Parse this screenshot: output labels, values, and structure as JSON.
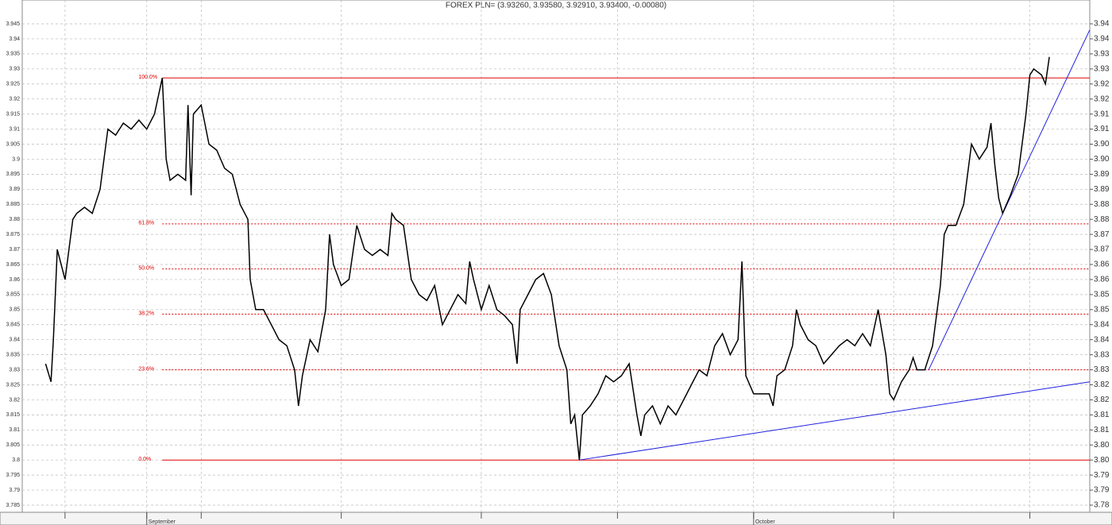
{
  "chart_data": {
    "type": "line",
    "title": "FOREX PLN= (3.93260, 3.93580, 3.92910, 3.93400, -0.00080)",
    "x": [
      30,
      37,
      40,
      45,
      50,
      55,
      60,
      65,
      70,
      80,
      90,
      100,
      110,
      120,
      130,
      140,
      150,
      160,
      170,
      180,
      185,
      190,
      200,
      210,
      213,
      217,
      220,
      230,
      240,
      250,
      260,
      270,
      280,
      290,
      293,
      300,
      310,
      320,
      330,
      340,
      350,
      355,
      360,
      370,
      380,
      390,
      395,
      400,
      410,
      420,
      430,
      440,
      450,
      460,
      470,
      475,
      480,
      490,
      500,
      510,
      520,
      530,
      540,
      550,
      560,
      570,
      575,
      580,
      590,
      600,
      610,
      620,
      630,
      636,
      640,
      650,
      660,
      670,
      680,
      690,
      700,
      705,
      710,
      716,
      720,
      730,
      740,
      750,
      760,
      770,
      780,
      790,
      795,
      800,
      810,
      820,
      830,
      840,
      850,
      860,
      870,
      880,
      890,
      900,
      910,
      920,
      925,
      930,
      940,
      950,
      960,
      965,
      970,
      980,
      990,
      995,
      1000,
      1010,
      1020,
      1030,
      1040,
      1050,
      1060,
      1070,
      1080,
      1090,
      1100,
      1110,
      1115,
      1120,
      1130,
      1140,
      1145,
      1150,
      1160,
      1170,
      1180,
      1185,
      1190,
      1200,
      1210,
      1220,
      1230,
      1240,
      1245,
      1250,
      1255,
      1260,
      1270,
      1280,
      1290,
      1295,
      1300,
      1310,
      1315,
      1320
    ],
    "series": [
      {
        "name": "PLN=",
        "color": "#000000",
        "values": [
          3.832,
          3.826,
          3.84,
          3.87,
          3.865,
          3.86,
          3.87,
          3.88,
          3.882,
          3.884,
          3.882,
          3.89,
          3.91,
          3.908,
          3.912,
          3.91,
          3.913,
          3.91,
          3.915,
          3.927,
          3.9,
          3.893,
          3.895,
          3.893,
          3.918,
          3.888,
          3.915,
          3.918,
          3.905,
          3.903,
          3.897,
          3.895,
          3.885,
          3.88,
          3.86,
          3.85,
          3.85,
          3.845,
          3.84,
          3.838,
          3.83,
          3.818,
          3.828,
          3.84,
          3.836,
          3.85,
          3.875,
          3.865,
          3.858,
          3.86,
          3.878,
          3.87,
          3.868,
          3.87,
          3.868,
          3.882,
          3.88,
          3.878,
          3.86,
          3.855,
          3.853,
          3.858,
          3.845,
          3.85,
          3.855,
          3.852,
          3.866,
          3.86,
          3.85,
          3.858,
          3.85,
          3.848,
          3.845,
          3.832,
          3.85,
          3.855,
          3.86,
          3.862,
          3.855,
          3.838,
          3.83,
          3.812,
          3.815,
          3.8,
          3.815,
          3.818,
          3.822,
          3.828,
          3.826,
          3.828,
          3.832,
          3.815,
          3.808,
          3.815,
          3.818,
          3.812,
          3.818,
          3.815,
          3.82,
          3.825,
          3.83,
          3.828,
          3.838,
          3.842,
          3.835,
          3.84,
          3.866,
          3.828,
          3.822,
          3.822,
          3.822,
          3.818,
          3.828,
          3.83,
          3.838,
          3.85,
          3.845,
          3.84,
          3.838,
          3.832,
          3.835,
          3.838,
          3.84,
          3.838,
          3.842,
          3.838,
          3.85,
          3.835,
          3.822,
          3.82,
          3.826,
          3.83,
          3.834,
          3.83,
          3.83,
          3.838,
          3.858,
          3.875,
          3.878,
          3.878,
          3.885,
          3.905,
          3.9,
          3.904,
          3.912,
          3.898,
          3.887,
          3.882,
          3.888,
          3.895,
          3.915,
          3.928,
          3.93,
          3.928,
          3.925,
          3.934
        ]
      }
    ],
    "xlim": [
      0,
      1372
    ],
    "xticks": [
      55,
      160,
      230,
      410,
      590,
      765,
      940,
      1120,
      1295
    ],
    "month_labels": [
      {
        "value": 160,
        "label": "September"
      },
      {
        "value": 940,
        "label": "October"
      }
    ],
    "ylim": [
      3.785,
      3.945
    ],
    "yticks": [
      3.785,
      3.79,
      3.795,
      3.8,
      3.805,
      3.81,
      3.815,
      3.82,
      3.825,
      3.83,
      3.835,
      3.84,
      3.845,
      3.85,
      3.855,
      3.86,
      3.865,
      3.87,
      3.875,
      3.88,
      3.885,
      3.89,
      3.895,
      3.9,
      3.905,
      3.91,
      3.915,
      3.92,
      3.925,
      3.93,
      3.935,
      3.94,
      3.945
    ],
    "y2lim": [
      3.785,
      3.945
    ],
    "y2ticks": [
      {
        "value": 3.785,
        "label": "3.78"
      },
      {
        "value": 3.79,
        "label": "3.79"
      },
      {
        "value": 3.795,
        "label": "3.79"
      },
      {
        "value": 3.8,
        "label": "3.80"
      },
      {
        "value": 3.805,
        "label": "3.80"
      },
      {
        "value": 3.81,
        "label": "3.81"
      },
      {
        "value": 3.815,
        "label": "3.81"
      },
      {
        "value": 3.82,
        "label": "3.82"
      },
      {
        "value": 3.825,
        "label": "3.82"
      },
      {
        "value": 3.83,
        "label": "3.83"
      },
      {
        "value": 3.835,
        "label": "3.83"
      },
      {
        "value": 3.84,
        "label": "3.84"
      },
      {
        "value": 3.845,
        "label": "3.84"
      },
      {
        "value": 3.85,
        "label": "3.85"
      },
      {
        "value": 3.855,
        "label": "3.85"
      },
      {
        "value": 3.86,
        "label": "3.86"
      },
      {
        "value": 3.865,
        "label": "3.86"
      },
      {
        "value": 3.87,
        "label": "3.87"
      },
      {
        "value": 3.875,
        "label": "3.87"
      },
      {
        "value": 3.88,
        "label": "3.88"
      },
      {
        "value": 3.885,
        "label": "3.88"
      },
      {
        "value": 3.89,
        "label": "3.89"
      },
      {
        "value": 3.895,
        "label": "3.89"
      },
      {
        "value": 3.9,
        "label": "3.90"
      },
      {
        "value": 3.905,
        "label": "3.90"
      },
      {
        "value": 3.91,
        "label": "3.91"
      },
      {
        "value": 3.915,
        "label": "3.91"
      },
      {
        "value": 3.92,
        "label": "3.92"
      },
      {
        "value": 3.925,
        "label": "3.92"
      },
      {
        "value": 3.93,
        "label": "3.93"
      },
      {
        "value": 3.935,
        "label": "3.93"
      },
      {
        "value": 3.94,
        "label": "3.94"
      },
      {
        "value": 3.945,
        "label": "3.94"
      }
    ],
    "grid": true,
    "levels_color": "#e00000",
    "levels": [
      {
        "value": 3.927,
        "label": "100.0%",
        "dashed": false
      },
      {
        "value": 3.8785,
        "label": "61.8%",
        "dashed": true
      },
      {
        "value": 3.8635,
        "label": "50.0%",
        "dashed": true
      },
      {
        "value": 3.8485,
        "label": "38.2%",
        "dashed": true
      },
      {
        "value": 3.83,
        "label": "23.6%",
        "dashed": true
      },
      {
        "value": 3.8,
        "label": "0.0%",
        "dashed": false
      }
    ],
    "trendlines_color": "#2020e0",
    "trendlines": [
      {
        "x": [
          716,
          1372
        ],
        "y": [
          3.8,
          3.826
        ]
      },
      {
        "x": [
          1165,
          1372
        ],
        "y": [
          3.83,
          3.943
        ]
      }
    ]
  }
}
